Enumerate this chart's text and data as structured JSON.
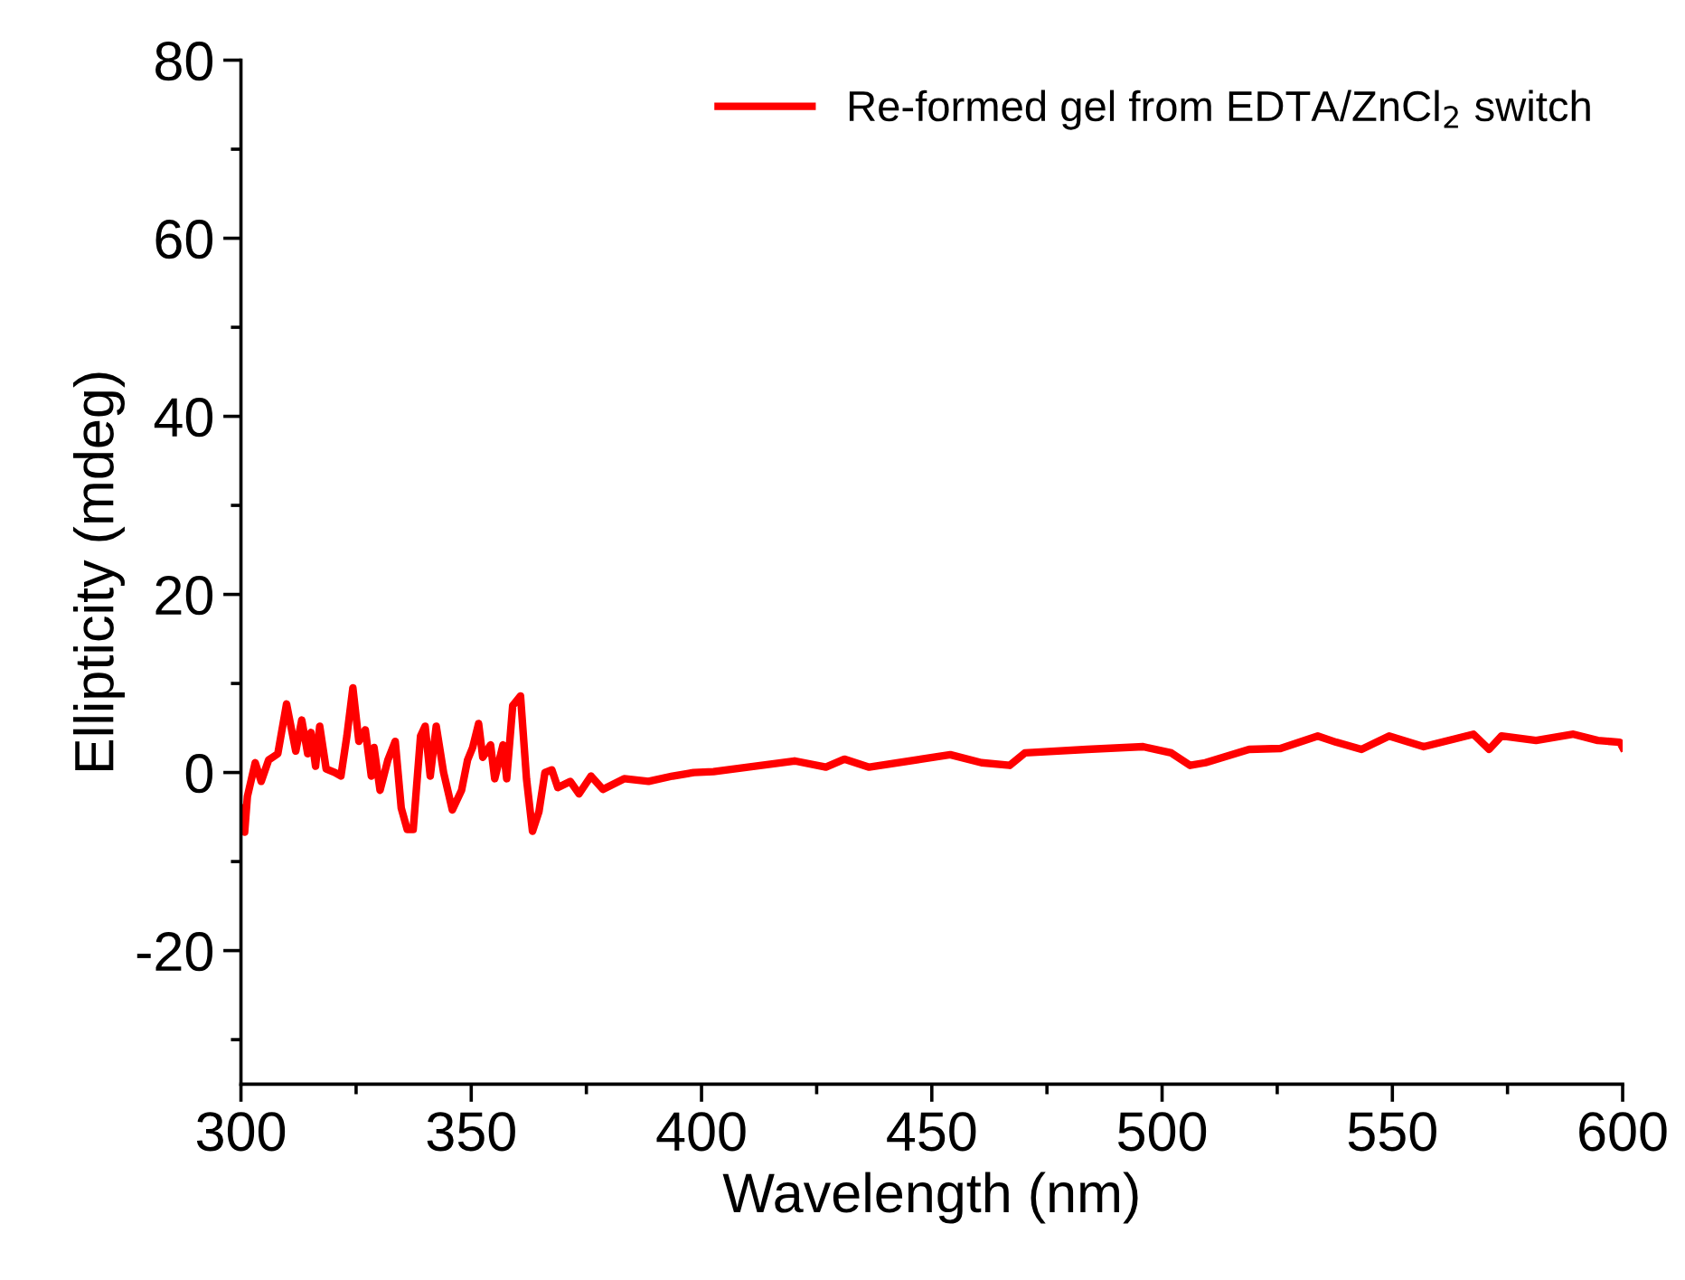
{
  "chart_data": {
    "type": "line",
    "xlabel": "Wavelength (nm)",
    "ylabel": "Ellipticity (mdeg)",
    "xlim": [
      300,
      600
    ],
    "ylim": [
      -35,
      80
    ],
    "xticks": [
      300,
      350,
      400,
      450,
      500,
      550,
      600
    ],
    "yticks": [
      -20,
      0,
      20,
      40,
      60,
      80
    ],
    "grid": false,
    "legend": "top right",
    "marker": "none",
    "line_style": "solid",
    "series": [
      {
        "name": "Re-formed gel from EDTA/ZnCl$_{2}$ switch",
        "color": "#ff0000",
        "x": [
          300,
          300.8,
          301.4,
          303.1,
          304.4,
          306,
          308,
          309.9,
          311.9,
          313.2,
          314.5,
          315.2,
          316.2,
          317.1,
          318.5,
          320.4,
          321.7,
          323,
          324.3,
          325.6,
          327,
          328.3,
          328.9,
          330.2,
          331.9,
          333.5,
          334.8,
          336.1,
          337.4,
          339,
          340,
          341.1,
          342.4,
          344,
          345.9,
          347.9,
          349.2,
          350.3,
          351.6,
          352.5,
          354.2,
          355.1,
          356.9,
          357.7,
          359,
          360.7,
          362,
          363.3,
          364.7,
          366,
          367.5,
          368.8,
          371.5,
          373.4,
          376,
          378.6,
          383.2,
          388.5,
          393.7,
          398.3,
          402.6,
          420.2,
          427,
          431,
          436.4,
          454,
          460.8,
          466.9,
          470.2,
          483.7,
          495.9,
          502,
          506.1,
          509.4,
          518.9,
          525.7,
          533.8,
          537.8,
          543.3,
          549.3,
          556.8,
          567.6,
          571,
          573.7,
          581.2,
          589.3,
          594.6,
          599.4,
          600
        ],
        "values": [
          -4,
          -6.7,
          -2.7,
          1.1,
          -1,
          1.4,
          2.1,
          7.7,
          2.4,
          5.9,
          2.1,
          4.5,
          0.7,
          5.2,
          0.4,
          0,
          -0.4,
          4.1,
          9.5,
          3.5,
          4.8,
          -0.4,
          2.8,
          -2,
          1.4,
          3.5,
          -4,
          -6.4,
          -6.4,
          4.1,
          5.2,
          -0.4,
          5.2,
          0,
          -4.2,
          -2,
          1.4,
          2.8,
          5.5,
          1.7,
          3.1,
          -0.7,
          3.1,
          -0.7,
          7.5,
          8.6,
          -0.7,
          -6.6,
          -4.4,
          0,
          0.3,
          -1.7,
          -1,
          -2.4,
          -0.4,
          -1.9,
          -0.7,
          -1,
          -0.4,
          0,
          0.1,
          1.3,
          0.6,
          1.5,
          0.6,
          2.0,
          1.1,
          0.8,
          2.2,
          2.6,
          2.9,
          2.2,
          0.8,
          1.1,
          2.6,
          2.7,
          4.1,
          3.4,
          2.6,
          4.1,
          2.9,
          4.3,
          2.6,
          4.1,
          3.6,
          4.3,
          3.6,
          3.4,
          2.8
        ]
      }
    ]
  }
}
